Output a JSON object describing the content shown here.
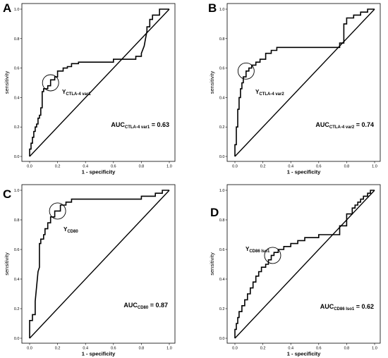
{
  "chart_data": [
    {
      "type": "line",
      "panel_label": "A",
      "xlabel": "1 - specificity",
      "ylabel": "sensitivity",
      "xlim": [
        0,
        1
      ],
      "ylim": [
        0,
        1
      ],
      "xticks": [
        "0.0",
        "0.2",
        "0.4",
        "0.6",
        "0.8",
        "1.0"
      ],
      "yticks": [
        "0.0",
        "0.2",
        "0.4",
        "0.6",
        "0.8",
        "1.0"
      ],
      "auc": {
        "prefix": "AUC",
        "subscript": "CTLA-4 var1",
        "value": "= 0.63"
      },
      "youden": {
        "prefix": "Y",
        "subscript": "CTLA-4 var1",
        "point": [
          0.15,
          0.5
        ]
      },
      "series": [
        {
          "x": [
            0,
            0,
            0.01,
            0.01,
            0.02,
            0.02,
            0.03,
            0.03,
            0.04,
            0.04,
            0.05,
            0.05,
            0.06,
            0.06,
            0.07,
            0.07,
            0.08,
            0.08,
            0.09,
            0.09,
            0.1,
            0.1,
            0.13,
            0.13,
            0.15,
            0.15,
            0.18,
            0.18,
            0.2,
            0.2,
            0.24,
            0.24,
            0.27,
            0.27,
            0.3,
            0.3,
            0.35,
            0.35,
            0.45,
            0.45,
            0.6,
            0.6,
            0.76,
            0.76,
            0.8,
            0.8,
            0.82,
            0.83,
            0.84,
            0.84,
            0.86,
            0.86,
            0.88,
            0.88,
            0.93,
            0.93,
            0.96,
            0.96,
            1
          ],
          "y": [
            0,
            0.05,
            0.05,
            0.09,
            0.09,
            0.13,
            0.13,
            0.17,
            0.17,
            0.2,
            0.2,
            0.22,
            0.22,
            0.26,
            0.26,
            0.28,
            0.28,
            0.33,
            0.33,
            0.44,
            0.44,
            0.46,
            0.46,
            0.48,
            0.48,
            0.52,
            0.52,
            0.54,
            0.54,
            0.58,
            0.58,
            0.6,
            0.6,
            0.61,
            0.61,
            0.63,
            0.63,
            0.64,
            0.64,
            0.64,
            0.64,
            0.66,
            0.66,
            0.68,
            0.68,
            0.7,
            0.75,
            0.8,
            0.85,
            0.88,
            0.88,
            0.93,
            0.93,
            0.96,
            0.96,
            1,
            1,
            1,
            1
          ]
        }
      ]
    },
    {
      "type": "line",
      "panel_label": "B",
      "xlabel": "1 - specificity",
      "ylabel": "sensitivity",
      "xlim": [
        0,
        1
      ],
      "ylim": [
        0,
        1
      ],
      "xticks": [
        "0.0",
        "0.2",
        "0.4",
        "0.6",
        "0.8",
        "1.0"
      ],
      "yticks": [
        "0.0",
        "0.2",
        "0.4",
        "0.6",
        "0.8",
        "1.0"
      ],
      "auc": {
        "prefix": "AUC",
        "subscript": "CTLA-4 var2",
        "value": "= 0.74"
      },
      "youden": {
        "prefix": "Y",
        "subscript": "CTLA-4 var2",
        "point": [
          0.08,
          0.58
        ]
      },
      "series": [
        {
          "x": [
            0,
            0,
            0.01,
            0.01,
            0.02,
            0.02,
            0.03,
            0.03,
            0.04,
            0.04,
            0.05,
            0.05,
            0.06,
            0.06,
            0.08,
            0.08,
            0.1,
            0.1,
            0.12,
            0.12,
            0.15,
            0.15,
            0.18,
            0.18,
            0.22,
            0.22,
            0.26,
            0.26,
            0.3,
            0.3,
            0.75,
            0.75,
            0.78,
            0.78,
            0.8,
            0.8,
            0.85,
            0.85,
            0.9,
            0.9,
            0.95,
            0.95,
            1
          ],
          "y": [
            0,
            0.08,
            0.08,
            0.2,
            0.2,
            0.32,
            0.32,
            0.4,
            0.4,
            0.46,
            0.46,
            0.5,
            0.5,
            0.54,
            0.54,
            0.58,
            0.58,
            0.6,
            0.6,
            0.62,
            0.62,
            0.64,
            0.64,
            0.66,
            0.66,
            0.7,
            0.7,
            0.72,
            0.72,
            0.74,
            0.74,
            0.77,
            0.77,
            0.9,
            0.9,
            0.94,
            0.94,
            0.96,
            0.96,
            0.98,
            0.98,
            1,
            1
          ]
        }
      ]
    },
    {
      "type": "line",
      "panel_label": "C",
      "xlabel": "1 - specificity",
      "ylabel": "sensitivity",
      "xlim": [
        0,
        1
      ],
      "ylim": [
        0,
        1
      ],
      "xticks": [
        "0.0",
        "0.2",
        "0.4",
        "0.6",
        "0.8",
        "1.0"
      ],
      "yticks": [
        "0.0",
        "0.2",
        "0.4",
        "0.6",
        "0.8",
        "1.0"
      ],
      "auc": {
        "prefix": "AUC",
        "subscript": "CD80",
        "value": "= 0.87"
      },
      "youden": {
        "prefix": "Y",
        "subscript": "CD80",
        "point": [
          0.2,
          0.86
        ]
      },
      "series": [
        {
          "x": [
            0,
            0,
            0.02,
            0.02,
            0.04,
            0.04,
            0.05,
            0.06,
            0.07,
            0.07,
            0.08,
            0.08,
            0.1,
            0.1,
            0.11,
            0.11,
            0.13,
            0.13,
            0.15,
            0.15,
            0.18,
            0.18,
            0.22,
            0.22,
            0.26,
            0.26,
            0.3,
            0.3,
            0.7,
            0.7,
            0.8,
            0.8,
            0.9,
            0.9,
            0.95,
            0.95,
            1
          ],
          "y": [
            0,
            0.12,
            0.12,
            0.16,
            0.16,
            0.25,
            0.35,
            0.45,
            0.48,
            0.64,
            0.64,
            0.67,
            0.67,
            0.7,
            0.7,
            0.74,
            0.74,
            0.78,
            0.78,
            0.82,
            0.82,
            0.86,
            0.86,
            0.9,
            0.9,
            0.92,
            0.92,
            0.94,
            0.94,
            0.94,
            0.94,
            0.96,
            0.96,
            0.98,
            0.98,
            1,
            1
          ]
        }
      ]
    },
    {
      "type": "line",
      "panel_label": "D",
      "xlabel": "1 - specificity",
      "ylabel": "sensitivity",
      "xlim": [
        0,
        1
      ],
      "ylim": [
        0,
        1
      ],
      "xticks": [
        "0.0",
        "0.2",
        "0.4",
        "0.6",
        "0.8",
        "1.0"
      ],
      "yticks": [
        "0.0",
        "0.2",
        "0.4",
        "0.6",
        "0.8",
        "1.0"
      ],
      "auc": {
        "prefix": "AUC",
        "subscript": "CD86 Iso1",
        "value": "= 0.62"
      },
      "youden": {
        "prefix": "Y",
        "subscript": "CD86 Iso1",
        "point": [
          0.27,
          0.56
        ]
      },
      "series": [
        {
          "x": [
            0,
            0,
            0.01,
            0.01,
            0.02,
            0.02,
            0.03,
            0.03,
            0.05,
            0.05,
            0.07,
            0.07,
            0.09,
            0.09,
            0.11,
            0.11,
            0.13,
            0.13,
            0.15,
            0.15,
            0.17,
            0.17,
            0.19,
            0.19,
            0.22,
            0.22,
            0.24,
            0.24,
            0.26,
            0.26,
            0.28,
            0.28,
            0.31,
            0.31,
            0.35,
            0.35,
            0.4,
            0.4,
            0.45,
            0.45,
            0.5,
            0.5,
            0.6,
            0.6,
            0.75,
            0.75,
            0.8,
            0.8,
            0.84,
            0.84,
            0.86,
            0.86,
            0.88,
            0.88,
            0.9,
            0.9,
            0.92,
            0.92,
            0.95,
            0.95,
            0.97,
            0.97,
            1
          ],
          "y": [
            0,
            0.06,
            0.06,
            0.1,
            0.1,
            0.14,
            0.14,
            0.18,
            0.18,
            0.22,
            0.22,
            0.26,
            0.26,
            0.3,
            0.3,
            0.34,
            0.34,
            0.38,
            0.38,
            0.42,
            0.42,
            0.45,
            0.45,
            0.48,
            0.48,
            0.5,
            0.5,
            0.53,
            0.53,
            0.56,
            0.56,
            0.58,
            0.58,
            0.6,
            0.6,
            0.62,
            0.62,
            0.64,
            0.64,
            0.66,
            0.66,
            0.68,
            0.68,
            0.7,
            0.7,
            0.76,
            0.76,
            0.84,
            0.84,
            0.88,
            0.88,
            0.9,
            0.9,
            0.92,
            0.92,
            0.94,
            0.94,
            0.96,
            0.96,
            0.98,
            0.98,
            1,
            1
          ]
        }
      ]
    }
  ]
}
